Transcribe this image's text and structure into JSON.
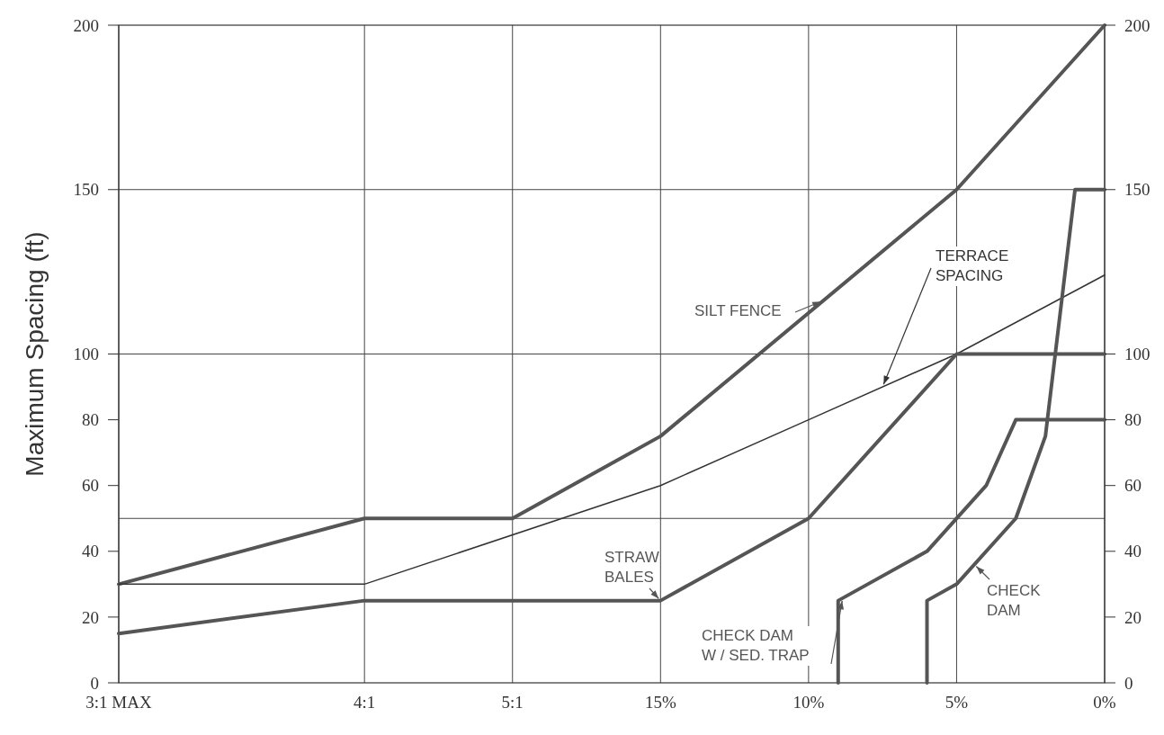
{
  "chart_data": {
    "type": "line",
    "ylabel": "Maximum Spacing (ft)",
    "xlim": [
      33.3,
      0
    ],
    "xticks": [
      {
        "value": 33.3,
        "label": "3:1 MAX"
      },
      {
        "value": 25,
        "label": "4:1"
      },
      {
        "value": 20,
        "label": "5:1"
      },
      {
        "value": 15,
        "label": "15%"
      },
      {
        "value": 10,
        "label": "10%"
      },
      {
        "value": 5,
        "label": "5%"
      },
      {
        "value": 0,
        "label": "0%"
      }
    ],
    "ylim": [
      0,
      200
    ],
    "yticks": [
      0,
      20,
      40,
      60,
      80,
      100,
      150,
      200
    ],
    "y2lim": [
      0,
      200
    ],
    "y2ticks": [
      0,
      20,
      40,
      60,
      80,
      100,
      150,
      200
    ],
    "grid": "x",
    "ref_lines": [
      {
        "axis": "y",
        "value": 50
      },
      {
        "axis": "y",
        "value": 100
      },
      {
        "axis": "y",
        "value": 150
      }
    ],
    "series": [
      {
        "name": "SILT FENCE",
        "color": "#555555",
        "x": [
          33.3,
          25,
          20,
          15,
          5,
          0
        ],
        "values": [
          30,
          50,
          50,
          75,
          150,
          200
        ]
      },
      {
        "name": "TERRACE SPACING",
        "color": "#333333",
        "x": [
          33.3,
          25,
          15,
          10,
          5,
          0
        ],
        "values": [
          30,
          30,
          60,
          80,
          100,
          124
        ]
      },
      {
        "name": "STRAW BALES",
        "color": "#555555",
        "x": [
          33.3,
          25,
          15,
          10,
          5,
          0
        ],
        "values": [
          15,
          25,
          25,
          50,
          100,
          100
        ]
      },
      {
        "name": "CHECK DAM W / SED. TRAP",
        "color": "#555555",
        "x": [
          9,
          9,
          6,
          4,
          3,
          0
        ],
        "values": [
          0,
          25,
          40,
          60,
          80,
          80
        ]
      },
      {
        "name": "CHECK DAM",
        "color": "#555555",
        "x": [
          6,
          6,
          5,
          3,
          2,
          1,
          0
        ],
        "values": [
          0,
          25,
          30,
          50,
          75,
          150,
          150
        ]
      }
    ]
  }
}
